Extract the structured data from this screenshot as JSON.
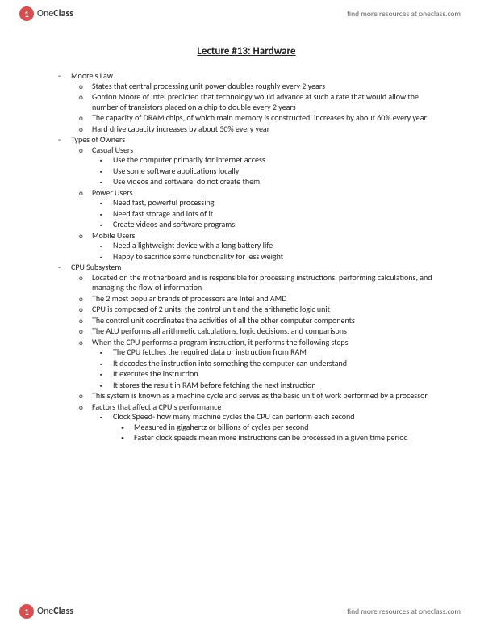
{
  "brand": {
    "circle_letter": "1",
    "one": "One",
    "class": "Class"
  },
  "resources_text": "find more resources at oneclass.com",
  "title": "Lecture #13: Hardware",
  "sections": [
    {
      "heading": "Moore's Law",
      "items": [
        {
          "text": "States that central processing unit power doubles roughly every 2 years"
        },
        {
          "text": "Gordon Moore of Intel predicted that technology would advance at such a rate that would allow the number of transistors placed on a chip to double every 2 years"
        },
        {
          "text": "The capacity of DRAM chips, of which main memory is constructed, increases by about 60% every year"
        },
        {
          "text": "Hard drive capacity increases by about 50% every year"
        }
      ]
    },
    {
      "heading": "Types of Owners",
      "items": [
        {
          "text": "Casual Users",
          "sub": [
            {
              "text": "Use the computer primarily for internet access"
            },
            {
              "text": "Use some software applications locally"
            },
            {
              "text": "Use videos and software, do not create them"
            }
          ]
        },
        {
          "text": "Power Users",
          "sub": [
            {
              "text": "Need fast, powerful processing"
            },
            {
              "text": "Need fast storage and lots of it"
            },
            {
              "text": "Create videos and software programs"
            }
          ]
        },
        {
          "text": "Mobile Users",
          "sub": [
            {
              "text": "Need a lightweight device with a long battery life"
            },
            {
              "text": "Happy to sacrifice some functionality for less weight"
            }
          ]
        }
      ]
    },
    {
      "heading": "CPU Subsystem",
      "items": [
        {
          "text": "Located on the motherboard and is responsible for processing instructions, performing calculations, and managing the flow of information"
        },
        {
          "text": "The 2 most popular brands of processors are Intel and AMD"
        },
        {
          "text": "CPU is composed of 2 units: the control unit and the arithmetic logic unit"
        },
        {
          "text": "The control unit coordinates the activities of all the other computer components"
        },
        {
          "text": "The ALU performs all arithmetic calculations, logic decisions, and comparisons"
        },
        {
          "text": "When the CPU performs a program instruction, it performs the following steps",
          "sub": [
            {
              "text": "The CPU fetches the required data or instruction from RAM"
            },
            {
              "text": "It decodes the instruction into something the computer can understand"
            },
            {
              "text": "It executes the instruction"
            },
            {
              "text": "It stores the result in RAM before fetching the next instruction"
            }
          ]
        },
        {
          "text": "This system is known as a machine cycle and serves as the basic unit of work performed by a processor"
        },
        {
          "text": "Factors that affect a CPU's performance",
          "sub": [
            {
              "text": "Clock Speed- how many machine cycles the CPU can perform each second",
              "sub": [
                {
                  "text": "Measured in gigahertz or billions of cycles per second"
                },
                {
                  "text": "Faster clock speeds mean more instructions can be processed in a given time period"
                }
              ]
            }
          ]
        }
      ]
    }
  ]
}
